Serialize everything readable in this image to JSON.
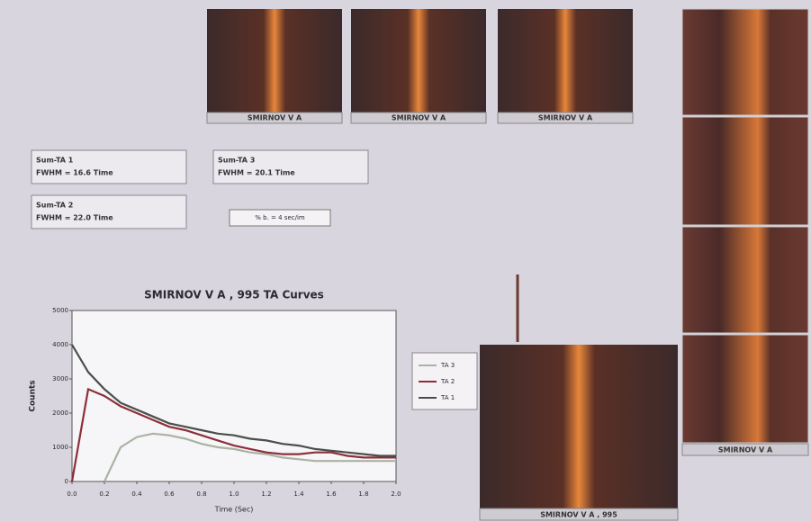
{
  "thumbnails": [
    {
      "caption": "SMIRNOV V A"
    },
    {
      "caption": "SMIRNOV V A"
    },
    {
      "caption": "SMIRNOV V A"
    }
  ],
  "info_boxes": [
    {
      "line1": "Sum-TA 1",
      "line2": "FWHM = 16.6 Time"
    },
    {
      "line1": "Sum-TA 3",
      "line2": "FWHM = 20.1 Time"
    },
    {
      "line1": "Sum-TA 2",
      "line2": "FWHM = 22.0 Time"
    }
  ],
  "button": {
    "label": "% b. = 4 sec/im"
  },
  "large_image": {
    "caption": "SMIRNOV V A , 995"
  },
  "side_image": {
    "caption": "SMIRNOV V A"
  },
  "chart_data": {
    "type": "line",
    "title": "SMIRNOV V A , 995  TA Curves",
    "x_label": "Time (Sec)",
    "y_label": "Counts",
    "x": [
      0,
      0.1,
      0.2,
      0.3,
      0.4,
      0.5,
      0.6,
      0.7,
      0.8,
      0.9,
      1.0,
      1.1,
      1.2,
      1.3,
      1.4,
      1.5,
      1.6,
      1.7,
      1.8,
      1.9,
      2.0
    ],
    "series": [
      {
        "name": "TA 3",
        "color": "#a9b3a4",
        "values": [
          null,
          null,
          0,
          1000,
          1300,
          1400,
          1350,
          1250,
          1100,
          1000,
          950,
          850,
          800,
          700,
          650,
          600,
          600,
          600,
          600,
          600,
          600
        ]
      },
      {
        "name": "TA 2",
        "color": "#8c2f3a",
        "values": [
          0,
          2700,
          2500,
          2200,
          2000,
          1800,
          1600,
          1500,
          1350,
          1200,
          1050,
          950,
          850,
          800,
          800,
          850,
          850,
          750,
          700,
          700,
          700
        ]
      },
      {
        "name": "TA 1",
        "color": "#4a4f4a",
        "values": [
          4000,
          3200,
          2700,
          2300,
          2100,
          1900,
          1700,
          1600,
          1500,
          1400,
          1350,
          1250,
          1200,
          1100,
          1050,
          950,
          900,
          850,
          800,
          750,
          750
        ]
      }
    ],
    "xlim": [
      0,
      2.0
    ],
    "xticks": [
      {
        "value": 0,
        "label": "0.0"
      },
      {
        "value": 0.2,
        "label": "0.2"
      },
      {
        "value": 0.4,
        "label": "0.4"
      },
      {
        "value": 0.6,
        "label": "0.6"
      },
      {
        "value": 0.8,
        "label": "0.8"
      },
      {
        "value": 1.0,
        "label": "1.0"
      },
      {
        "value": 1.2,
        "label": "1.2"
      },
      {
        "value": 1.4,
        "label": "1.4"
      },
      {
        "value": 1.6,
        "label": "1.6"
      },
      {
        "value": 1.8,
        "label": "1.8"
      },
      {
        "value": 2.0,
        "label": "2.0"
      }
    ],
    "ylim": [
      0,
      5000
    ],
    "yticks": [
      0,
      1000,
      2000,
      3000,
      4000,
      5000
    ]
  }
}
